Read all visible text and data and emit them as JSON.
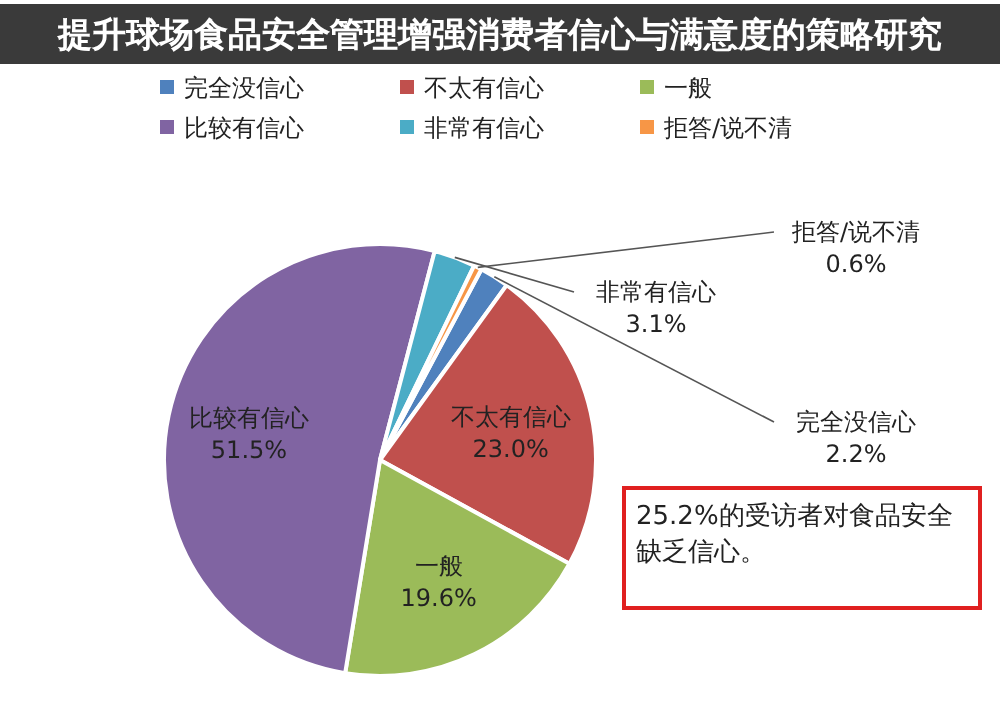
{
  "chart_data": {
    "type": "pie",
    "title": "提升球场食品安全管理增强消费者信心与满意度的策略研究",
    "categories": [
      "完全没信心",
      "不太有信心",
      "一般",
      "比较有信心",
      "非常有信心",
      "拒答/说不清"
    ],
    "values": [
      2.2,
      23.0,
      19.6,
      51.5,
      3.1,
      0.6
    ],
    "colors": [
      "#4f81bd",
      "#c0504d",
      "#9bbb59",
      "#8064a2",
      "#4bacc6",
      "#f79646"
    ],
    "value_labels": [
      "2.2%",
      "23.0%",
      "19.6%",
      "51.5%",
      "3.1%",
      "0.6%"
    ],
    "legend": "top",
    "annotations": [
      "25.2%的受访者对食品安全缺乏信心。"
    ]
  }
}
